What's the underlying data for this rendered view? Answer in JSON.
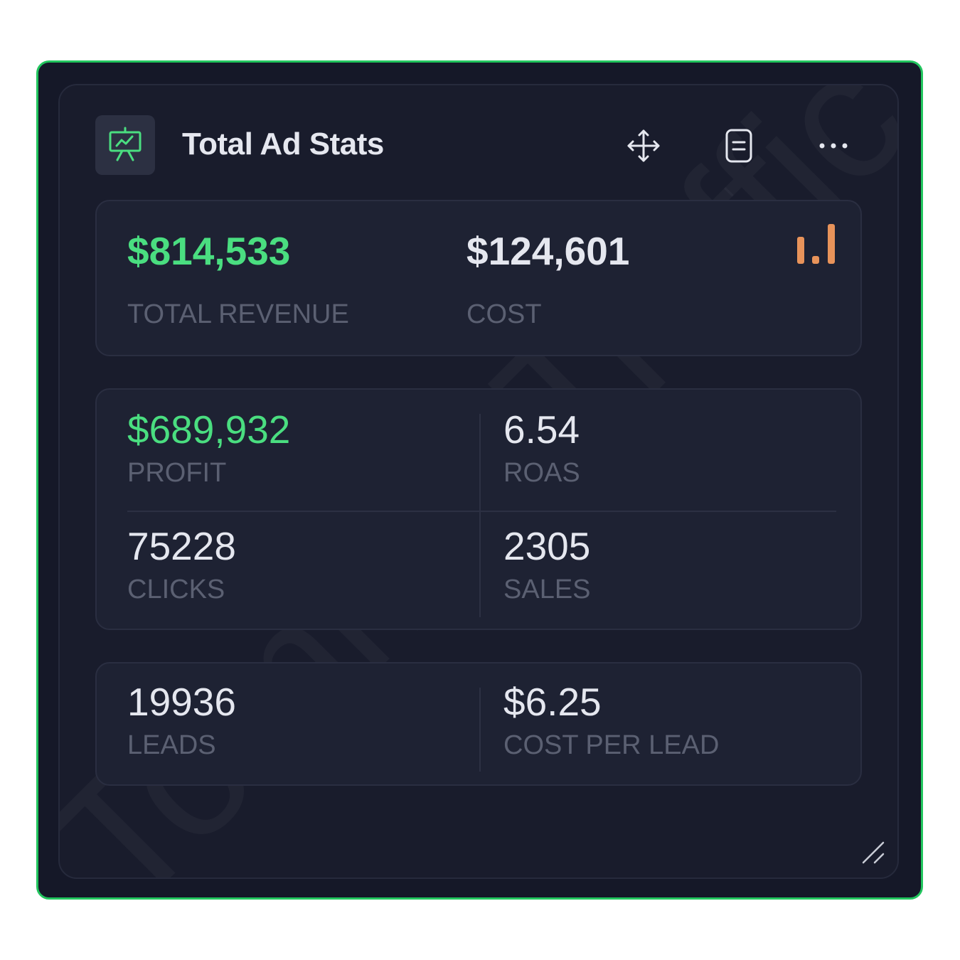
{
  "header": {
    "title": "Total Ad Stats",
    "icon": "presentation-chart-icon",
    "actions": [
      "move-icon",
      "document-icon",
      "more-icon"
    ]
  },
  "watermark": "TommieTraffic",
  "summary": {
    "revenue": {
      "value": "$814,533",
      "label": "TOTAL REVENUE"
    },
    "cost": {
      "value": "$124,601",
      "label": "COST"
    },
    "chart_icon": "bar-chart-icon"
  },
  "stats": {
    "profit": {
      "value": "$689,932",
      "label": "PROFIT"
    },
    "roas": {
      "value": "6.54",
      "label": "ROAS"
    },
    "clicks": {
      "value": "75228",
      "label": "CLICKS"
    },
    "sales": {
      "value": "2305",
      "label": "SALES"
    }
  },
  "leads": {
    "leads": {
      "value": "19936",
      "label": "LEADS"
    },
    "cpl": {
      "value": "$6.25",
      "label": "COST PER LEAD"
    }
  },
  "colors": {
    "accent_green": "#4ade80",
    "frame_border": "#22c55e",
    "chart_orange": "#e8935a",
    "background": "#151828"
  }
}
